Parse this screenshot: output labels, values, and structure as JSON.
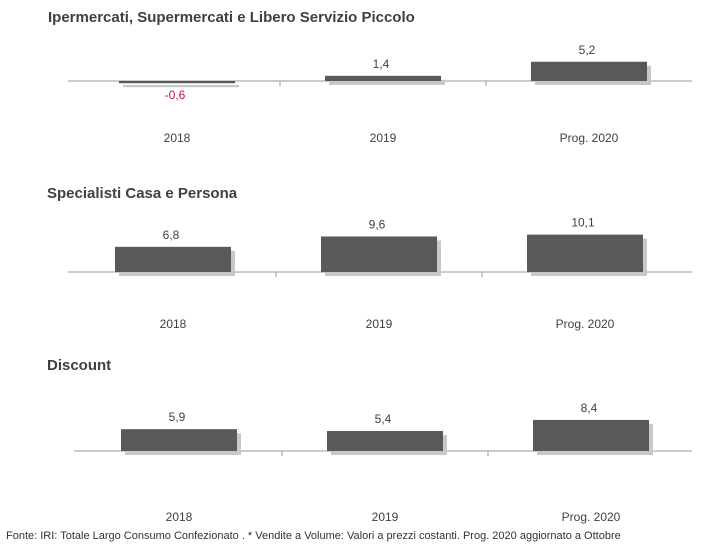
{
  "colors": {
    "bar": "#595959",
    "bar_shadow": "#c8c8c8",
    "negative_label": "#c0143c",
    "text": "#404040"
  },
  "chart_data": [
    {
      "type": "bar",
      "title": "Ipermercati,  Supermercati e Libero Servizio Piccolo",
      "categories": [
        "2018",
        "2019",
        "Prog. 2020"
      ],
      "values": [
        -0.6,
        1.4,
        5.2
      ],
      "value_labels": [
        "-0,6",
        "1,4",
        "5,2"
      ]
    },
    {
      "type": "bar",
      "title": "Specialisti  Casa e Persona",
      "categories": [
        "2018",
        "2019",
        "Prog. 2020"
      ],
      "values": [
        6.8,
        9.6,
        10.1
      ],
      "value_labels": [
        "6,8",
        "9,6",
        "10,1"
      ]
    },
    {
      "type": "bar",
      "title": "Discount",
      "categories": [
        "2018",
        "2019",
        "Prog. 2020"
      ],
      "values": [
        5.9,
        5.4,
        8.4
      ],
      "value_labels": [
        "5,9",
        "5,4",
        "8,4"
      ]
    }
  ],
  "footnote": "Fonte: IRI: Totale Largo Consumo Confezionato . * Vendite a Volume: Valori a prezzi costanti. Prog. 2020 aggiornato a Ottobre"
}
